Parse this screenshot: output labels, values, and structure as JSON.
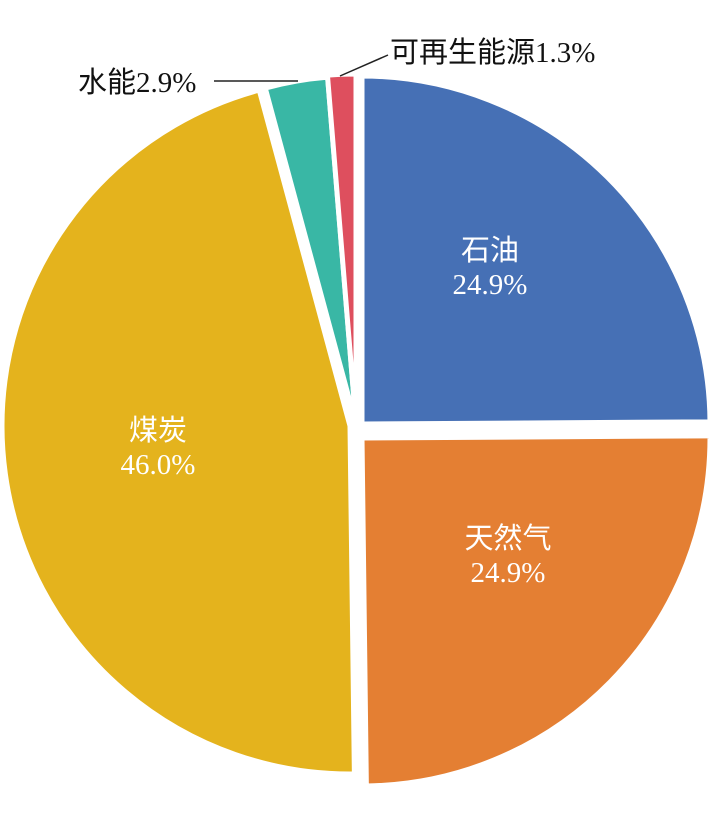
{
  "chart_data": {
    "type": "pie",
    "title": "",
    "slices": [
      {
        "label": "石油",
        "value": 24.9,
        "value_text": "24.9%",
        "color": "#4670B5",
        "label_position": "inside"
      },
      {
        "label": "天然气",
        "value": 24.9,
        "value_text": "24.9%",
        "color": "#E47F33",
        "label_position": "inside"
      },
      {
        "label": "煤炭",
        "value": 46.0,
        "value_text": "46.0%",
        "color": "#E4B31D",
        "label_position": "inside"
      },
      {
        "label": "水能",
        "value": 2.9,
        "value_text": "2.9%",
        "color": "#39B7A5",
        "label_position": "outside"
      },
      {
        "label": "可再生能源",
        "value": 1.3,
        "value_text": "1.3%",
        "color": "#DE4F5E",
        "label_position": "outside"
      }
    ],
    "start_angle_deg": 0,
    "direction": "clockwise",
    "exploded": true,
    "legend": "none"
  }
}
